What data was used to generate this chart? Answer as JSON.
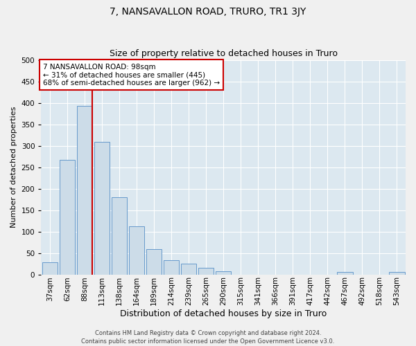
{
  "title": "7, NANSAVALLON ROAD, TRURO, TR1 3JY",
  "subtitle": "Size of property relative to detached houses in Truro",
  "xlabel": "Distribution of detached houses by size in Truro",
  "ylabel": "Number of detached properties",
  "bar_labels": [
    "37sqm",
    "62sqm",
    "88sqm",
    "113sqm",
    "138sqm",
    "164sqm",
    "189sqm",
    "214sqm",
    "239sqm",
    "265sqm",
    "290sqm",
    "315sqm",
    "341sqm",
    "366sqm",
    "391sqm",
    "417sqm",
    "442sqm",
    "467sqm",
    "492sqm",
    "518sqm",
    "543sqm"
  ],
  "bar_values": [
    29,
    267,
    393,
    309,
    180,
    113,
    59,
    33,
    25,
    15,
    7,
    0,
    0,
    0,
    0,
    0,
    0,
    5,
    0,
    0,
    5
  ],
  "bar_color": "#ccdce8",
  "bar_edge_color": "#6699cc",
  "vline_color": "#cc0000",
  "vline_x_index": 2,
  "ylim": [
    0,
    500
  ],
  "yticks": [
    0,
    50,
    100,
    150,
    200,
    250,
    300,
    350,
    400,
    450,
    500
  ],
  "fig_background_color": "#f0f0f0",
  "plot_background_color": "#dce8f0",
  "grid_color": "#ffffff",
  "annotation_line1": "7 NANSAVALLON ROAD: 98sqm",
  "annotation_line2": "← 31% of detached houses are smaller (445)",
  "annotation_line3": "68% of semi-detached houses are larger (962) →",
  "annotation_box_color": "#ffffff",
  "annotation_box_edge": "#cc0000",
  "footer_text": "Contains HM Land Registry data © Crown copyright and database right 2024.\nContains public sector information licensed under the Open Government Licence v3.0.",
  "title_fontsize": 10,
  "subtitle_fontsize": 9,
  "xlabel_fontsize": 9,
  "ylabel_fontsize": 8,
  "tick_fontsize": 7.5,
  "annotation_fontsize": 7.5,
  "footer_fontsize": 6
}
